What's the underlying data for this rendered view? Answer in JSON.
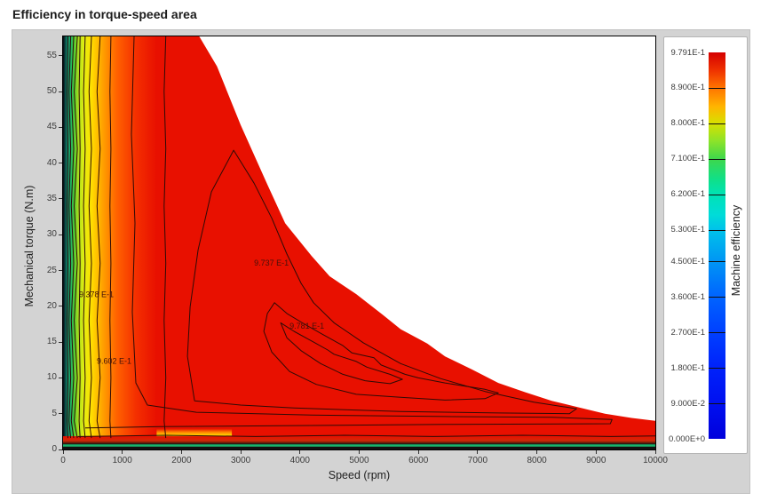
{
  "page": {
    "title": "Efficiency in torque-speed area"
  },
  "chart_data": {
    "type": "heatmap",
    "subtype": "filled-contour-efficiency-map",
    "title": "Efficiency in torque-speed area",
    "xlabel": "Speed (rpm)",
    "ylabel": "Mechanical torque (N.m)",
    "xlim": [
      0,
      10000
    ],
    "ylim": [
      0,
      57.7
    ],
    "grid": false,
    "x_ticks": [
      0,
      1000,
      2000,
      3000,
      4000,
      5000,
      6000,
      7000,
      8000,
      9000,
      10000
    ],
    "y_ticks": [
      0,
      5,
      10,
      15,
      20,
      25,
      30,
      35,
      40,
      45,
      50,
      55
    ],
    "colorbar": {
      "label": "Machine efficiency",
      "min": 0.0,
      "max": 0.9791,
      "ticks": [
        {
          "label": "9.791E-1",
          "value": 0.9791
        },
        {
          "label": "8.900E-1",
          "value": 0.89
        },
        {
          "label": "8.000E-1",
          "value": 0.8
        },
        {
          "label": "7.100E-1",
          "value": 0.71
        },
        {
          "label": "6.200E-1",
          "value": 0.62
        },
        {
          "label": "5.300E-1",
          "value": 0.53
        },
        {
          "label": "4.500E-1",
          "value": 0.45
        },
        {
          "label": "3.600E-1",
          "value": 0.36
        },
        {
          "label": "2.700E-1",
          "value": 0.27
        },
        {
          "label": "1.800E-1",
          "value": 0.18
        },
        {
          "label": "9.000E-2",
          "value": 0.09
        },
        {
          "label": "0.000E+0",
          "value": 0.0
        }
      ],
      "gradient_stops": [
        {
          "at": 0,
          "color": "#d40000"
        },
        {
          "at": 0.045,
          "color": "#ee3000"
        },
        {
          "at": 0.091,
          "color": "#ff7300"
        },
        {
          "at": 0.14,
          "color": "#ffb400"
        },
        {
          "at": 0.183,
          "color": "#d8e000"
        },
        {
          "at": 0.23,
          "color": "#8ce32a"
        },
        {
          "at": 0.275,
          "color": "#3fd74b"
        },
        {
          "at": 0.33,
          "color": "#0fe08a"
        },
        {
          "at": 0.367,
          "color": "#00e2b4"
        },
        {
          "at": 0.42,
          "color": "#00dcd8"
        },
        {
          "at": 0.459,
          "color": "#00c2ea"
        },
        {
          "at": 0.54,
          "color": "#0096f4"
        },
        {
          "at": 0.632,
          "color": "#0064ff"
        },
        {
          "at": 0.724,
          "color": "#0040ff"
        },
        {
          "at": 0.816,
          "color": "#0022fa"
        },
        {
          "at": 0.908,
          "color": "#0010f0"
        },
        {
          "at": 1,
          "color": "#0000dc"
        }
      ]
    },
    "envelope_boundary": [
      [
        0,
        57.7
      ],
      [
        2300,
        57.7
      ],
      [
        2600,
        53.5
      ],
      [
        3000,
        45.3
      ],
      [
        3450,
        37.0
      ],
      [
        3750,
        31.6
      ],
      [
        4200,
        27.0
      ],
      [
        4500,
        24.2
      ],
      [
        4950,
        21.7
      ],
      [
        5400,
        18.8
      ],
      [
        5700,
        16.8
      ],
      [
        6150,
        14.8
      ],
      [
        6450,
        13.0
      ],
      [
        6900,
        11.2
      ],
      [
        7350,
        9.3
      ],
      [
        7800,
        8.0
      ],
      [
        8250,
        6.8
      ],
      [
        8700,
        5.9
      ],
      [
        9150,
        5.0
      ],
      [
        9600,
        4.4
      ],
      [
        10000,
        4.0
      ]
    ],
    "region_fill": {
      "body_color": "#e81000",
      "contour_line_color": "#2e0b06",
      "left_band_width_rpm": 1580,
      "left_band_stops": [
        {
          "at": 0,
          "color": "#06030f"
        },
        {
          "at": 0.04,
          "color": "#0e7a66"
        },
        {
          "at": 0.08,
          "color": "#19b26b"
        },
        {
          "at": 0.12,
          "color": "#51cc31"
        },
        {
          "at": 0.16,
          "color": "#a4dc1e"
        },
        {
          "at": 0.22,
          "color": "#e0ee12"
        },
        {
          "at": 0.3,
          "color": "#ffe000"
        },
        {
          "at": 0.42,
          "color": "#ffa300"
        },
        {
          "at": 0.58,
          "color": "#ff6000"
        },
        {
          "at": 0.78,
          "color": "#f42f00"
        },
        {
          "at": 1,
          "color": "#e81000"
        }
      ],
      "bottom_band_height_torque": 1.85,
      "bottom_band_stops": [
        {
          "at": 0,
          "color": "#e81000"
        },
        {
          "at": 0.33,
          "color": "#d02808"
        },
        {
          "at": 0.47,
          "color": "#7a1e06"
        },
        {
          "at": 0.6,
          "color": "#141414"
        },
        {
          "at": 0.63,
          "color": "#17b36b"
        },
        {
          "at": 0.77,
          "color": "#17b36b"
        },
        {
          "at": 0.8,
          "color": "#101010"
        },
        {
          "at": 1,
          "color": "#101010"
        }
      ],
      "corner_band": {
        "from_rpm": 1580,
        "to_rpm": 2850,
        "top_torque": 2.9,
        "stops": [
          {
            "at": 0,
            "color": "#e81000"
          },
          {
            "at": 0.18,
            "color": "#ff8c00"
          },
          {
            "at": 0.33,
            "color": "#ffd800"
          },
          {
            "at": 0.48,
            "color": "#a8dc14"
          },
          {
            "at": 0.6,
            "color": "#2fbf5e"
          },
          {
            "at": 0.7,
            "color": "#111111"
          },
          {
            "at": 0.8,
            "color": "#2fc97e"
          },
          {
            "at": 1,
            "color": "#111111"
          }
        ]
      }
    },
    "contours": {
      "vertical_levels_rpm": [
        75,
        115,
        160,
        215,
        280,
        360,
        460,
        600,
        800,
        1720
      ],
      "horizontal_levels": [
        {
          "torque": 1.9,
          "from_rpm": 250,
          "to_rpm": 10000
        }
      ],
      "loops": [
        {
          "name": "c-9602",
          "closed": false,
          "points": [
            [
              1200,
              57.7
            ],
            [
              1155,
              44.0
            ],
            [
              1215,
              31.6
            ],
            [
              1170,
              19.2
            ],
            [
              1230,
              9.3
            ],
            [
              1425,
              6.2
            ],
            [
              2250,
              5.2
            ],
            [
              4200,
              4.8
            ],
            [
              6450,
              4.6
            ],
            [
              8250,
              4.5
            ],
            [
              9270,
              4.2
            ],
            [
              9240,
              3.6
            ],
            [
              6450,
              3.5
            ],
            [
              3450,
              3.3
            ],
            [
              1650,
              3.2
            ],
            [
              375,
              3.0
            ]
          ]
        },
        {
          "name": "c-9737",
          "closed": true,
          "points": [
            [
              2220,
              6.8
            ],
            [
              2100,
              13.0
            ],
            [
              2145,
              19.9
            ],
            [
              2280,
              27.9
            ],
            [
              2505,
              36.0
            ],
            [
              2880,
              41.8
            ],
            [
              3225,
              37.2
            ],
            [
              3525,
              32.3
            ],
            [
              3780,
              27.3
            ],
            [
              4020,
              23.2
            ],
            [
              4230,
              20.5
            ],
            [
              4575,
              17.7
            ],
            [
              5070,
              14.9
            ],
            [
              5700,
              12.0
            ],
            [
              6375,
              9.9
            ],
            [
              7125,
              8.1
            ],
            [
              7950,
              6.6
            ],
            [
              8670,
              5.7
            ],
            [
              8550,
              5.0
            ],
            [
              7350,
              5.1
            ],
            [
              5700,
              5.3
            ],
            [
              3900,
              5.8
            ],
            [
              3000,
              6.2
            ]
          ]
        },
        {
          "name": "c-9781-outer",
          "closed": true,
          "points": [
            [
              3450,
              19.0
            ],
            [
              3570,
              20.5
            ],
            [
              3780,
              19.0
            ],
            [
              4080,
              17.5
            ],
            [
              4380,
              16.1
            ],
            [
              4725,
              14.5
            ],
            [
              4875,
              13.5
            ],
            [
              5250,
              12.8
            ],
            [
              5370,
              11.8
            ],
            [
              5775,
              10.5
            ],
            [
              6000,
              10.0
            ],
            [
              6450,
              9.3
            ],
            [
              7125,
              8.4
            ],
            [
              7350,
              7.9
            ],
            [
              7125,
              7.1
            ],
            [
              6450,
              6.9
            ],
            [
              5700,
              7.3
            ],
            [
              4950,
              7.7
            ],
            [
              4275,
              9.1
            ],
            [
              3825,
              10.9
            ],
            [
              3525,
              13.6
            ],
            [
              3390,
              16.5
            ]
          ]
        },
        {
          "name": "c-9781-inner",
          "closed": true,
          "points": [
            [
              3675,
              17.7
            ],
            [
              3900,
              16.5
            ],
            [
              4230,
              15.0
            ],
            [
              4470,
              13.9
            ],
            [
              4575,
              13.3
            ],
            [
              4950,
              12.3
            ],
            [
              5130,
              11.5
            ],
            [
              5520,
              10.5
            ],
            [
              5730,
              9.8
            ],
            [
              5520,
              9.2
            ],
            [
              5100,
              9.6
            ],
            [
              4725,
              10.5
            ],
            [
              4350,
              12.0
            ],
            [
              4020,
              13.8
            ],
            [
              3780,
              15.6
            ]
          ]
        }
      ],
      "labels": [
        {
          "text": "9.378 E-1",
          "rpm": 270,
          "torque": 21.3
        },
        {
          "text": "9.602 E-1",
          "rpm": 570,
          "torque": 12.0
        },
        {
          "text": "9.737 E-1",
          "rpm": 3225,
          "torque": 25.7
        },
        {
          "text": "9.781 E-1",
          "rpm": 3825,
          "torque": 16.9
        }
      ]
    }
  }
}
